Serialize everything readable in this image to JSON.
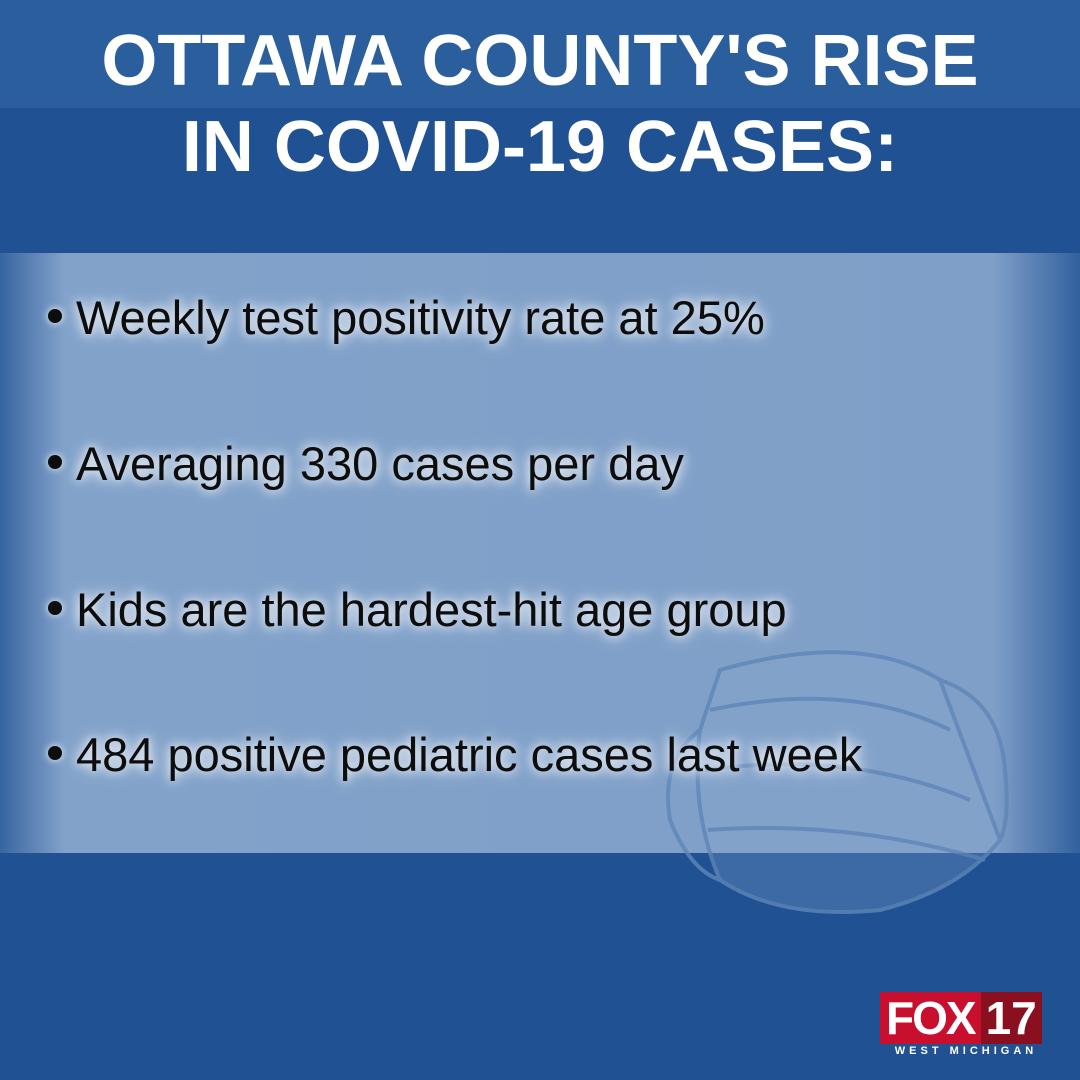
{
  "header": {
    "title_lines": [
      "OTTAWA COUNTY'S RISE",
      "IN COVID-19 CASES:"
    ]
  },
  "bullets": [
    "Weekly test positivity rate at 25%",
    "Averaging 330 cases per day",
    "Kids are the hardest-hit age group",
    "484 positive pediatric cases last week"
  ],
  "logo": {
    "brand": "FOX",
    "number": "17",
    "region": "WEST MICHIGAN"
  }
}
